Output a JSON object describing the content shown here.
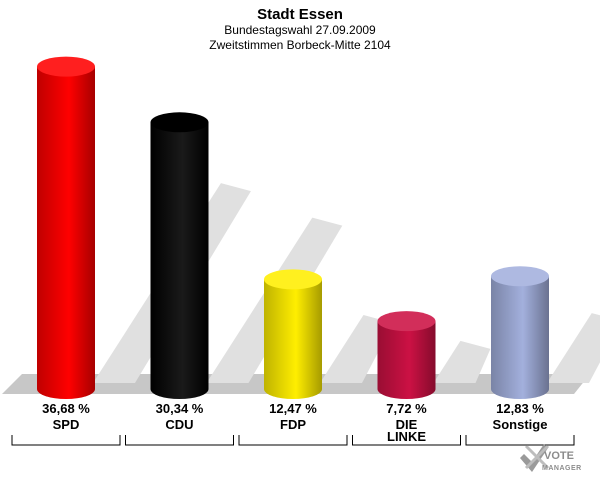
{
  "header": {
    "title": "Stadt Essen",
    "subtitle1": "Bundestagswahl 27.09.2009",
    "subtitle2": "Zweitstimmen Borbeck-Mitte 2104"
  },
  "logo": {
    "word1": "VOTE",
    "word2": "MANAGER",
    "icon": "checkmark-x-icon"
  },
  "chart_data": {
    "type": "bar",
    "title": "Stadt Essen",
    "subtitle": [
      "Bundestagswahl 27.09.2009",
      "Zweitstimmen Borbeck-Mitte 2104"
    ],
    "categories": [
      "SPD",
      "CDU",
      "FDP",
      "DIE LINKE",
      "Sonstige"
    ],
    "category_lines": [
      [
        "SPD"
      ],
      [
        "CDU"
      ],
      [
        "FDP"
      ],
      [
        "DIE",
        "LINKE"
      ],
      [
        "Sonstige"
      ]
    ],
    "values": [
      36.68,
      30.34,
      12.47,
      7.72,
      12.83
    ],
    "value_labels": [
      "36,68 %",
      "30,34 %",
      "12,47 %",
      "7,72 %",
      "12,83 %"
    ],
    "colors": [
      "#ff0000",
      "#000000",
      "#ffee00",
      "#cc1144",
      "#a3b0dd"
    ],
    "ylim": [
      0,
      40
    ],
    "grid": false,
    "legend": "none",
    "xlabel": "",
    "ylabel": ""
  }
}
